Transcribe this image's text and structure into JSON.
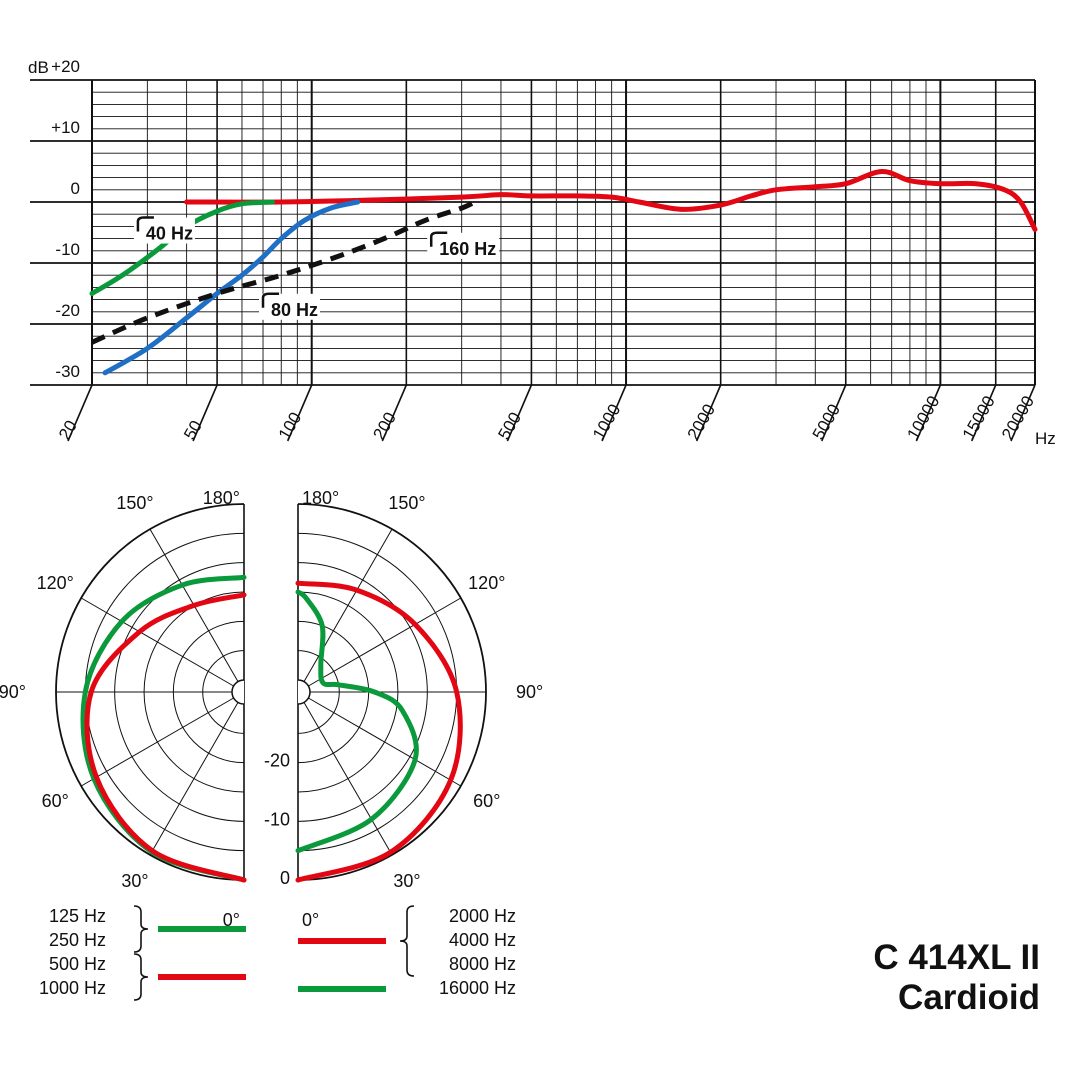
{
  "model": {
    "name": "C 414XL II",
    "pattern": "Cardioid"
  },
  "chart_data": [
    {
      "type": "line",
      "xscale": "log",
      "xlim": [
        20,
        20000
      ],
      "ylim": [
        -30,
        20
      ],
      "ylabel": "dB",
      "xunit": "Hz",
      "grid": true,
      "y_ticks": [
        "+20",
        "+10",
        "0",
        "-10",
        "-20",
        "-30"
      ],
      "y_tick_values": [
        20,
        10,
        0,
        -10,
        -20,
        -30
      ],
      "x_ticks": [
        "20",
        "50",
        "100",
        "200",
        "500",
        "1000",
        "2000",
        "5000",
        "10000",
        "15000",
        "20000"
      ],
      "x_tick_values": [
        20,
        50,
        100,
        200,
        500,
        1000,
        2000,
        5000,
        10000,
        15000,
        20000
      ],
      "series": [
        {
          "name": "",
          "color": "#e30613",
          "style": "solid",
          "points": [
            [
              40,
              0
            ],
            [
              80,
              0
            ],
            [
              150,
              0.3
            ],
            [
              300,
              0.8
            ],
            [
              400,
              1.2
            ],
            [
              500,
              1
            ],
            [
              700,
              1
            ],
            [
              900,
              0.8
            ],
            [
              1100,
              0
            ],
            [
              1500,
              -1.2
            ],
            [
              2000,
              -0.5
            ],
            [
              2500,
              1
            ],
            [
              3000,
              2
            ],
            [
              4000,
              2.5
            ],
            [
              5000,
              3
            ],
            [
              6500,
              5
            ],
            [
              8000,
              3.5
            ],
            [
              10000,
              3
            ],
            [
              13000,
              3
            ],
            [
              16000,
              2
            ],
            [
              18000,
              0
            ],
            [
              20000,
              -4.5
            ]
          ]
        },
        {
          "name": "",
          "color": "#0a9a3c",
          "style": "solid",
          "points": [
            [
              20,
              -15
            ],
            [
              25,
              -12
            ],
            [
              32,
              -8
            ],
            [
              40,
              -4
            ],
            [
              50,
              -1.5
            ],
            [
              60,
              -0.3
            ],
            [
              75,
              0
            ]
          ]
        },
        {
          "name": "",
          "color": "#1f6fc5",
          "style": "solid",
          "points": [
            [
              22,
              -28
            ],
            [
              30,
              -24
            ],
            [
              40,
              -19
            ],
            [
              50,
              -15
            ],
            [
              60,
              -12
            ],
            [
              70,
              -9
            ],
            [
              80,
              -6
            ],
            [
              95,
              -3
            ],
            [
              115,
              -1
            ],
            [
              140,
              0
            ]
          ]
        },
        {
          "name": "",
          "color": "#111111",
          "style": "dashed",
          "points": [
            [
              20,
              -23
            ],
            [
              30,
              -19
            ],
            [
              50,
              -15
            ],
            [
              80,
              -12
            ],
            [
              120,
              -9
            ],
            [
              170,
              -6
            ],
            [
              230,
              -3
            ],
            [
              300,
              -1
            ],
            [
              330,
              0
            ]
          ]
        }
      ],
      "annotations": [
        {
          "text": "40 Hz",
          "freq": 28,
          "db": -5.5
        },
        {
          "text": "80 Hz",
          "freq": 70,
          "db": -18
        },
        {
          "text": "160 Hz",
          "freq": 240,
          "db": -8
        }
      ]
    },
    {
      "type": "polar",
      "rlim": [
        -30,
        0
      ],
      "r_ticks": [
        "-20",
        "-10",
        "0"
      ],
      "r_tick_values": [
        -20,
        -10,
        0
      ],
      "angle_ticks_left": [
        "180°",
        "150°",
        "120°",
        "90°",
        "60°",
        "30°",
        "0°"
      ],
      "angle_ticks_right": [
        "180°",
        "150°",
        "120°",
        "90°",
        "60°",
        "30°",
        "0°"
      ],
      "angle_tick_values": [
        180,
        150,
        120,
        90,
        60,
        30,
        0
      ],
      "series": [
        {
          "name": "",
          "half": "left",
          "color": "#0a9a3c",
          "points": [
            [
              0,
              0
            ],
            [
              30,
              -0.6
            ],
            [
              60,
              -2.5
            ],
            [
              90,
              -5
            ],
            [
              120,
              -8
            ],
            [
              150,
              -11
            ],
            [
              180,
              -12.5
            ]
          ]
        },
        {
          "name": "",
          "half": "left",
          "color": "#e30613",
          "points": [
            [
              0,
              0
            ],
            [
              30,
              -0.8
            ],
            [
              60,
              -3
            ],
            [
              90,
              -6
            ],
            [
              120,
              -11.5
            ],
            [
              150,
              -15
            ],
            [
              180,
              -15.5
            ]
          ]
        },
        {
          "name": "",
          "half": "right",
          "color": "#e30613",
          "points": [
            [
              0,
              0
            ],
            [
              30,
              -0.5
            ],
            [
              60,
              -2
            ],
            [
              90,
              -5
            ],
            [
              120,
              -9
            ],
            [
              150,
              -12
            ],
            [
              180,
              -13.5
            ]
          ]
        },
        {
          "name": "",
          "half": "right",
          "color": "#0a9a3c",
          "points": [
            [
              0,
              -5
            ],
            [
              30,
              -7
            ],
            [
              60,
              -9
            ],
            [
              80,
              -14
            ],
            [
              90,
              -19
            ],
            [
              100,
              -25
            ],
            [
              110,
              -27.5
            ],
            [
              140,
              -26
            ],
            [
              160,
              -20
            ],
            [
              175,
              -16
            ],
            [
              180,
              -15
            ]
          ]
        }
      ],
      "legend": [
        {
          "labels": [
            "125 Hz",
            "250 Hz"
          ],
          "color": "#0a9a3c",
          "side": "left"
        },
        {
          "labels": [
            "500 Hz",
            "1000 Hz"
          ],
          "color": "#e30613",
          "side": "left"
        },
        {
          "labels": [
            "2000 Hz",
            "4000 Hz",
            "8000 Hz"
          ],
          "color": "#e30613",
          "side": "right"
        },
        {
          "labels": [
            "16000 Hz"
          ],
          "color": "#0a9a3c",
          "side": "right"
        }
      ]
    }
  ]
}
